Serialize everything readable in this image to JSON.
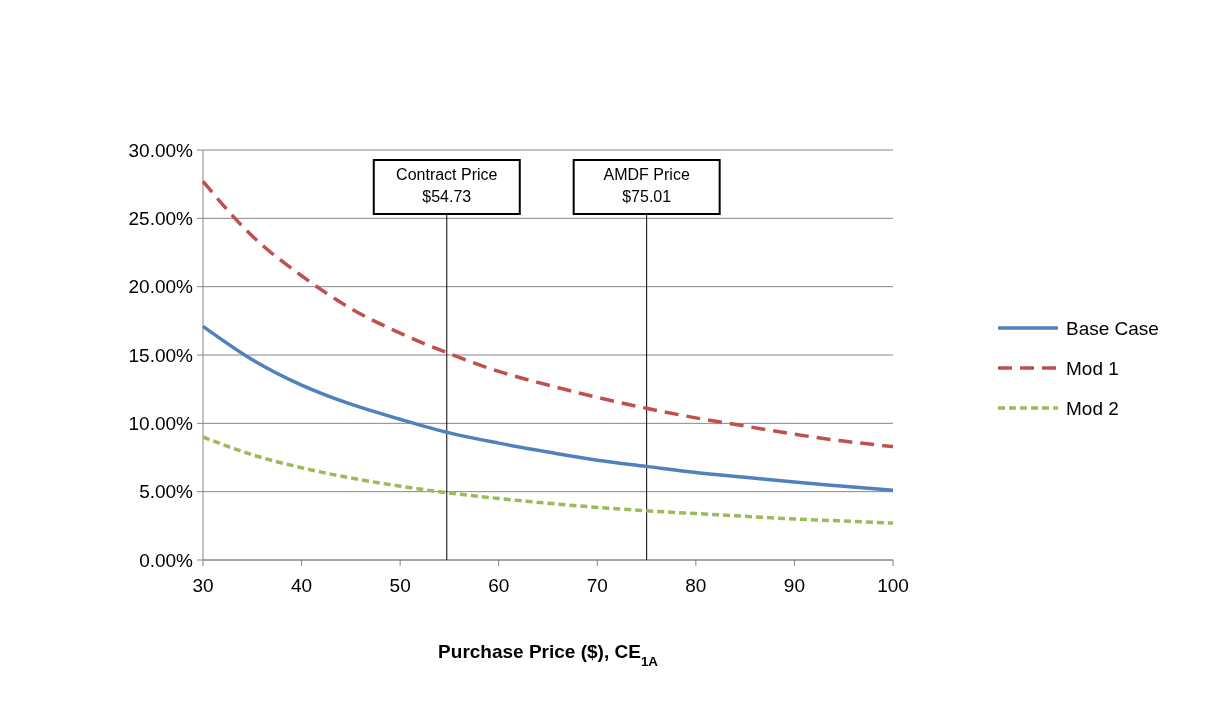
{
  "chart_data": {
    "type": "line",
    "xlabel": "Purchase Price ($), CE$_{1A}$",
    "x": [
      30,
      35,
      40,
      45,
      50,
      55,
      60,
      65,
      70,
      75,
      80,
      85,
      90,
      95,
      100
    ],
    "series": [
      {
        "name": "Base Case",
        "color": "#4f81bd",
        "line_style": "solid",
        "values": [
          17.1,
          14.66,
          12.8,
          11.4,
          10.3,
          9.3,
          8.55,
          7.9,
          7.3,
          6.85,
          6.4,
          6.05,
          5.7,
          5.4,
          5.1
        ]
      },
      {
        "name": "Mod 1",
        "color": "#c0504d",
        "line_style": "dashed",
        "values": [
          27.7,
          23.7,
          20.8,
          18.4,
          16.6,
          15.1,
          13.8,
          12.8,
          11.9,
          11.1,
          10.4,
          9.8,
          9.2,
          8.7,
          8.3
        ]
      },
      {
        "name": "Mod 2",
        "color": "#9bbb59",
        "line_style": "dotted",
        "values": [
          9.0,
          7.7,
          6.75,
          6.0,
          5.4,
          4.9,
          4.5,
          4.15,
          3.85,
          3.6,
          3.4,
          3.2,
          3.0,
          2.85,
          2.7
        ]
      }
    ],
    "xlim": [
      30,
      100
    ],
    "xticks": [
      30,
      40,
      50,
      60,
      70,
      80,
      90,
      100
    ],
    "ylim": [
      0,
      30
    ],
    "yticks": [
      {
        "value": 0,
        "label": "0.00%"
      },
      {
        "value": 5,
        "label": "5.00%"
      },
      {
        "value": 10,
        "label": "10.00%"
      },
      {
        "value": 15,
        "label": "15.00%"
      },
      {
        "value": 20,
        "label": "20.00%"
      },
      {
        "value": 25,
        "label": "25.00%"
      },
      {
        "value": 30,
        "label": "30.00%"
      }
    ],
    "ref_lines": [
      {
        "axis": "x",
        "value": 54.73,
        "label": "Contract Price\n$54.73",
        "color": "#000000"
      },
      {
        "axis": "x",
        "value": 75.01,
        "label": "AMDF Price\n$75.01",
        "color": "#000000"
      }
    ],
    "grid": "y",
    "legend": "right"
  }
}
